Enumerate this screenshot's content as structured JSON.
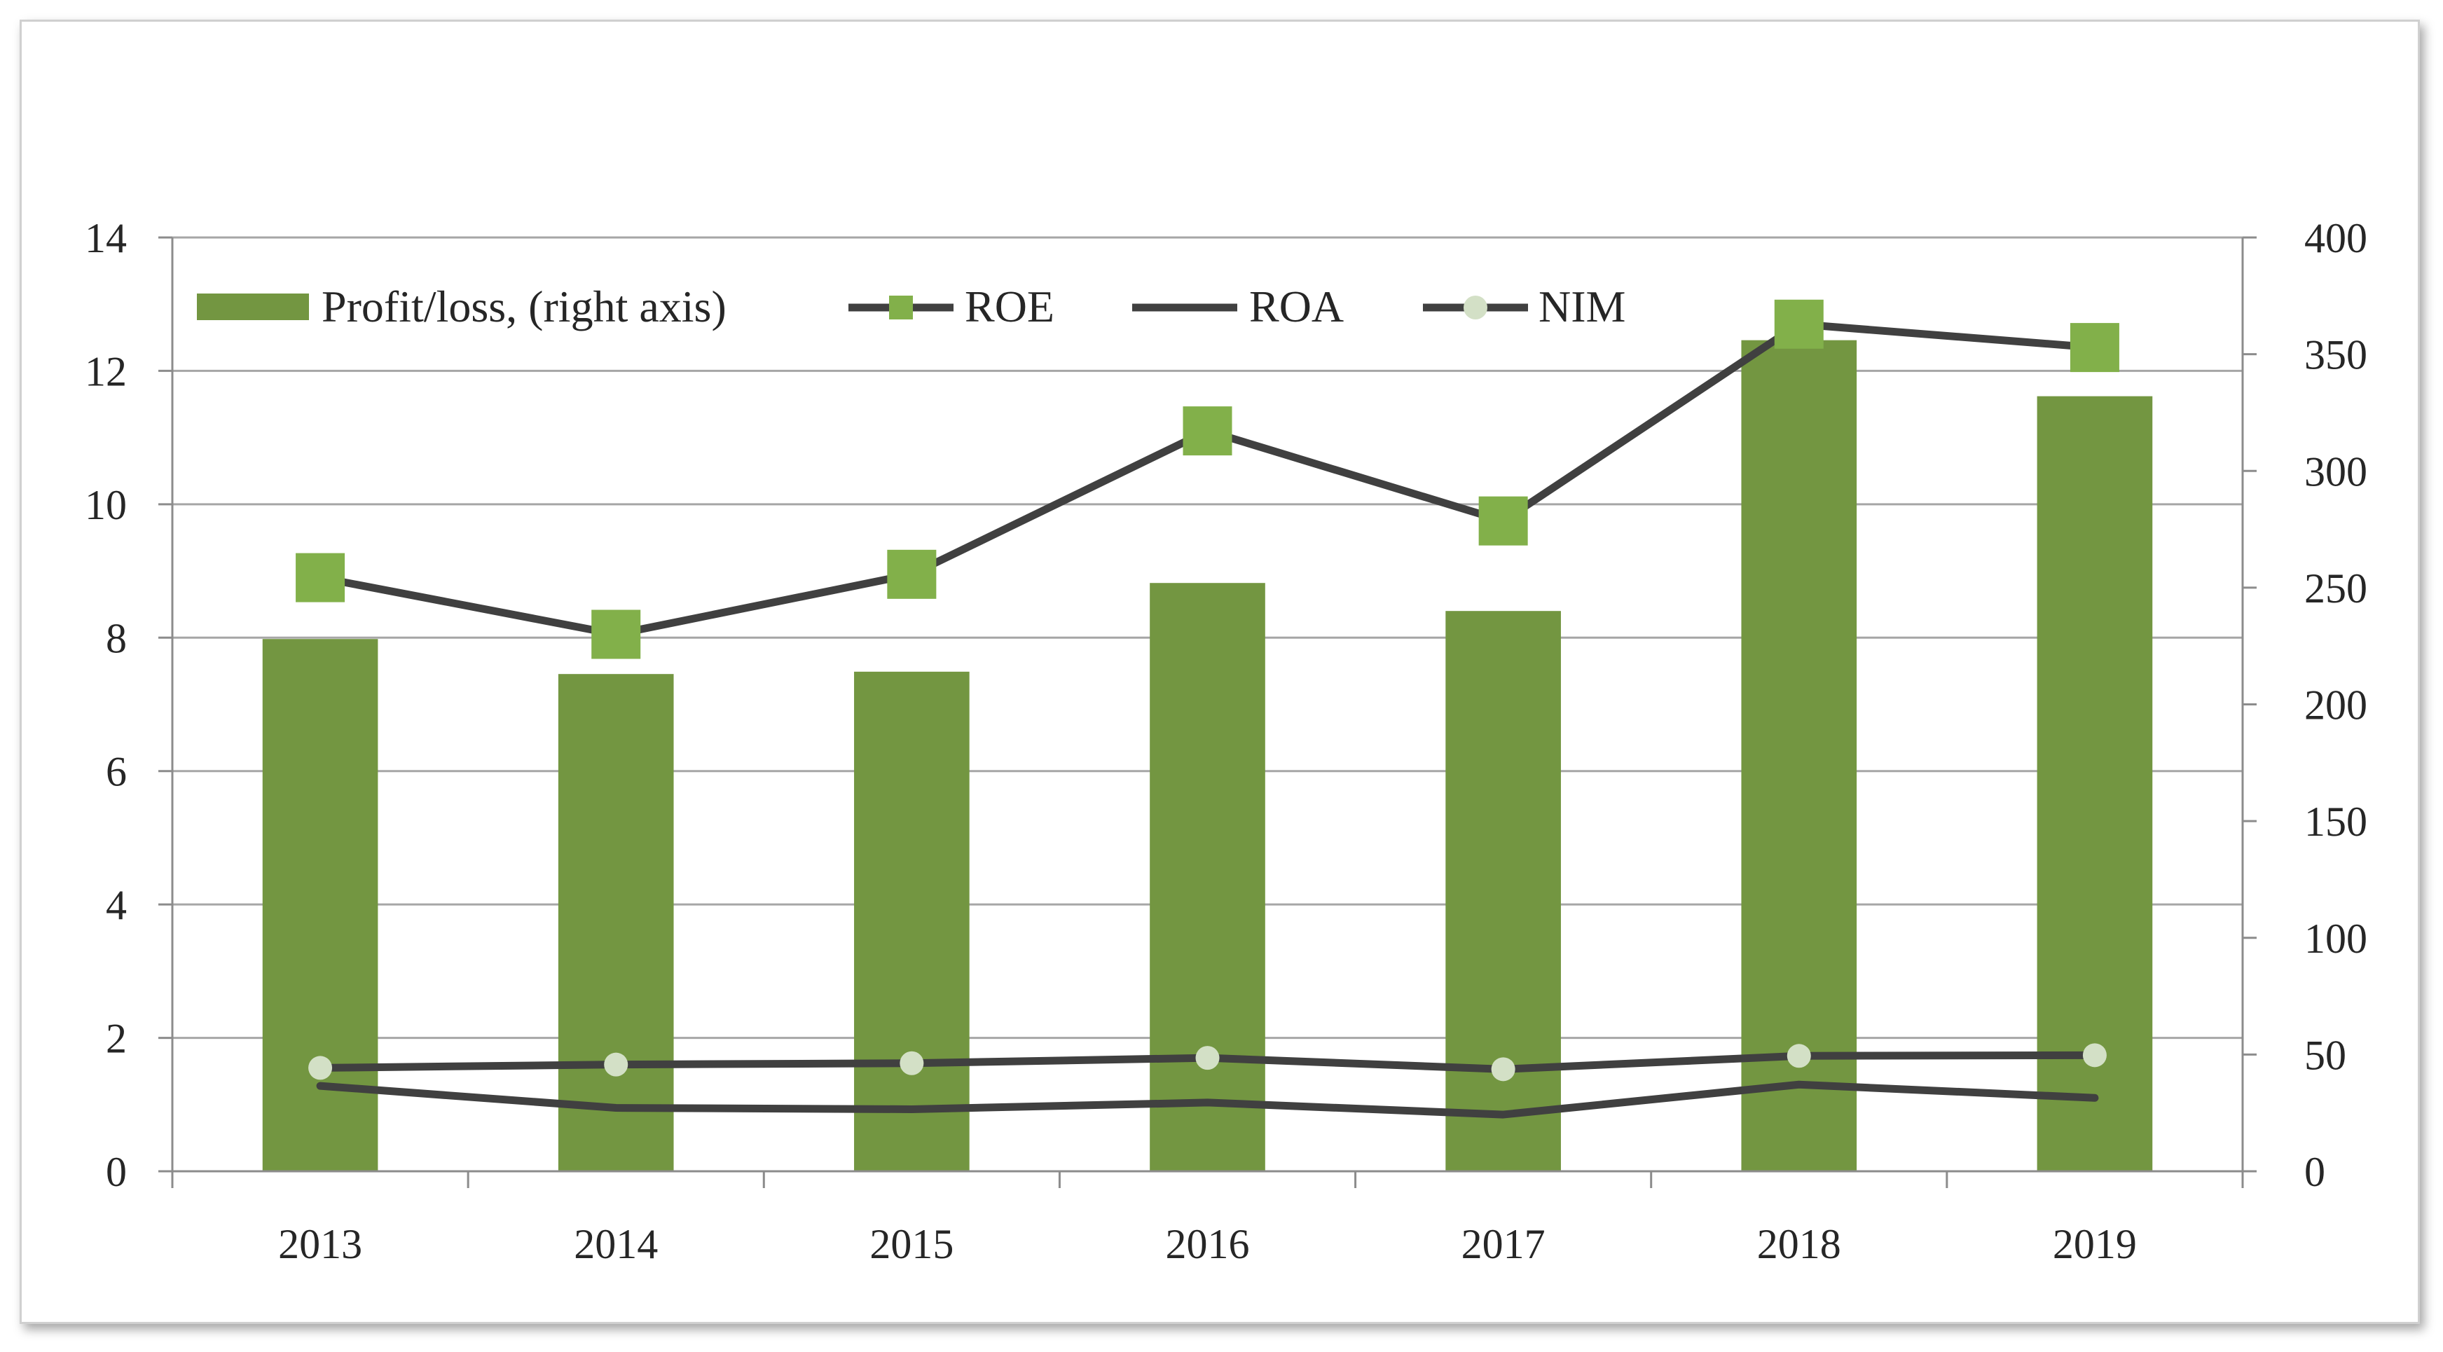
{
  "chart_data": {
    "type": "bar",
    "categories": [
      "2013",
      "2014",
      "2015",
      "2016",
      "2017",
      "2018",
      "2019"
    ],
    "series": [
      {
        "name": "Profit/loss, (right axis)",
        "type": "bar",
        "axis": "right",
        "values": [
          228,
          213,
          214,
          252,
          240,
          356,
          332
        ]
      },
      {
        "name": "ROE",
        "type": "line",
        "marker": "square",
        "axis": "left",
        "values": [
          8.9,
          8.05,
          8.95,
          11.1,
          9.75,
          12.7,
          12.35
        ]
      },
      {
        "name": "ROA",
        "type": "line",
        "marker": "none",
        "axis": "left",
        "values": [
          1.28,
          0.95,
          0.93,
          1.03,
          0.85,
          1.3,
          1.1
        ]
      },
      {
        "name": "NIM",
        "type": "line",
        "marker": "circle",
        "axis": "left",
        "values": [
          1.55,
          1.6,
          1.62,
          1.7,
          1.53,
          1.73,
          1.74
        ]
      }
    ],
    "left_axis": {
      "min": 0,
      "max": 14,
      "ticks": [
        "0",
        "2",
        "4",
        "6",
        "8",
        "10",
        "12",
        "14"
      ]
    },
    "right_axis": {
      "min": 0,
      "max": 400,
      "ticks": [
        "0",
        "50",
        "100",
        "150",
        "200",
        "250",
        "300",
        "350",
        "400"
      ]
    },
    "title": "",
    "xlabel": "",
    "ylabel": "",
    "grid": true,
    "legend_position": "top-left",
    "colors": {
      "bar": "#739641",
      "roe_line": "#404040",
      "roe_marker": "#82b04a",
      "roa_line": "#404040",
      "nim_line": "#404040",
      "nim_marker": "#d3e0c6",
      "grid": "#a6a6a6",
      "text": "#262626"
    }
  }
}
